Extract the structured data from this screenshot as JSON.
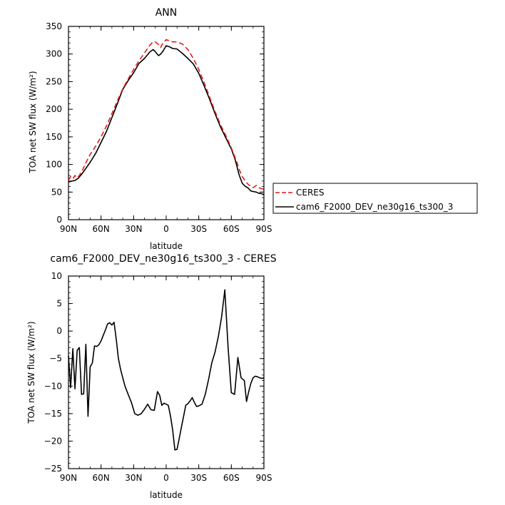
{
  "chart_data": [
    {
      "type": "line",
      "title": "ANN",
      "xlabel": "latitude",
      "ylabel": "TOA net SW flux (W/m²)",
      "xlim": [
        90,
        -90
      ],
      "ylim": [
        0,
        350
      ],
      "x_ticks": [
        {
          "value": 90,
          "label": "90N"
        },
        {
          "value": 60,
          "label": "60N"
        },
        {
          "value": 30,
          "label": "30N"
        },
        {
          "value": 0,
          "label": "0"
        },
        {
          "value": -30,
          "label": "30S"
        },
        {
          "value": -60,
          "label": "60S"
        },
        {
          "value": -90,
          "label": "90S"
        }
      ],
      "y_ticks": [
        0,
        50,
        100,
        150,
        200,
        250,
        300,
        350
      ],
      "legend": "right",
      "series": [
        {
          "name": "CERES",
          "color": "#e41a1c",
          "dash": "dashed",
          "x": [
            90,
            88,
            86,
            84,
            82,
            80,
            77,
            74,
            70,
            65,
            60,
            55,
            50,
            45,
            40,
            35,
            30,
            25,
            20,
            15,
            12,
            10,
            7,
            5,
            3,
            0,
            -3,
            -6,
            -10,
            -15,
            -20,
            -25,
            -30,
            -35,
            -40,
            -45,
            -50,
            -55,
            -60,
            -63,
            -65,
            -67,
            -70,
            -73,
            -75,
            -78,
            -80,
            -83,
            -85,
            -88,
            -90
          ],
          "values": [
            71,
            78,
            74,
            80,
            76,
            80,
            90,
            103,
            118,
            133,
            150,
            170,
            192,
            215,
            237,
            255,
            272,
            288,
            302,
            316,
            322,
            322,
            317,
            312,
            320,
            326,
            324,
            322,
            322,
            318,
            308,
            292,
            272,
            248,
            222,
            196,
            172,
            152,
            130,
            115,
            105,
            92,
            78,
            70,
            65,
            60,
            58,
            62,
            58,
            56,
            55
          ]
        },
        {
          "name": "cam6_F2000_DEV_ne30g16_ts300_3",
          "color": "#000000",
          "dash": "solid",
          "x": [
            90,
            87,
            84,
            81,
            78,
            75,
            70,
            65,
            60,
            55,
            50,
            45,
            40,
            35,
            30,
            25,
            20,
            15,
            12,
            10,
            7,
            5,
            3,
            0,
            -3,
            -6,
            -10,
            -15,
            -20,
            -25,
            -30,
            -35,
            -40,
            -45,
            -50,
            -55,
            -60,
            -63,
            -65,
            -67,
            -70,
            -73,
            -75,
            -78,
            -80,
            -83,
            -85,
            -88,
            -90
          ],
          "values": [
            68,
            70,
            71,
            75,
            82,
            90,
            104,
            120,
            140,
            160,
            185,
            210,
            236,
            252,
            266,
            283,
            292,
            304,
            308,
            304,
            297,
            300,
            305,
            315,
            313,
            310,
            309,
            301,
            292,
            282,
            265,
            242,
            218,
            192,
            168,
            148,
            128,
            112,
            98,
            82,
            66,
            60,
            58,
            52,
            51,
            50,
            48,
            47,
            45
          ]
        }
      ]
    },
    {
      "type": "line",
      "title": "cam6_F2000_DEV_ne30g16_ts300_3 - CERES",
      "xlabel": "latitude",
      "ylabel": "TOA net SW flux (W/m²)",
      "xlim": [
        90,
        -90
      ],
      "ylim": [
        -25,
        10
      ],
      "x_ticks": [
        {
          "value": 90,
          "label": "90N"
        },
        {
          "value": 60,
          "label": "60N"
        },
        {
          "value": 30,
          "label": "30N"
        },
        {
          "value": 0,
          "label": "0"
        },
        {
          "value": -30,
          "label": "30S"
        },
        {
          "value": -60,
          "label": "60S"
        },
        {
          "value": -90,
          "label": "90S"
        }
      ],
      "y_ticks": [
        -25,
        -20,
        -15,
        -10,
        -5,
        0,
        5,
        10
      ],
      "series": [
        {
          "color": "#000000",
          "dash": "solid",
          "x": [
            90,
            88,
            86,
            84,
            82,
            80,
            78,
            76,
            74,
            72,
            70,
            68,
            66,
            64,
            62,
            60,
            58,
            56,
            54,
            52,
            50,
            48,
            46,
            44,
            42,
            40,
            38,
            35,
            32,
            29,
            26,
            23,
            20,
            17,
            14,
            11,
            8,
            6,
            4,
            2,
            0,
            -2,
            -4,
            -6,
            -8,
            -10,
            -12,
            -14,
            -16,
            -18,
            -20,
            -22,
            -24,
            -26,
            -28,
            -30,
            -33,
            -36,
            -39,
            -42,
            -45,
            -48,
            -51,
            -54,
            -57,
            -60,
            -63,
            -66,
            -69,
            -72,
            -74,
            -76,
            -78,
            -80,
            -82,
            -84,
            -86,
            -88,
            -90
          ],
          "values": [
            -4.5,
            -10.3,
            -3.2,
            -10.5,
            -3.5,
            -3,
            -11.5,
            -11.4,
            -2.4,
            -15.5,
            -6.5,
            -5.8,
            -2.7,
            -2.8,
            -2.5,
            -1.8,
            -0.8,
            0.2,
            1.3,
            1.5,
            1.1,
            1.6,
            -1.5,
            -5,
            -7,
            -8.5,
            -10,
            -11.5,
            -13,
            -15,
            -15.3,
            -15,
            -14.2,
            -13.3,
            -14.3,
            -14.4,
            -11,
            -11.7,
            -13.5,
            -13.1,
            -13.3,
            -13.5,
            -15.5,
            -18,
            -21.6,
            -21.5,
            -19.5,
            -17.5,
            -15.5,
            -13.5,
            -13.2,
            -12.7,
            -12.1,
            -13,
            -13.7,
            -13.6,
            -13.3,
            -11.5,
            -8.8,
            -5.8,
            -3.8,
            -1,
            2.5,
            7.5,
            -3,
            -11.2,
            -11.5,
            -4.8,
            -8.5,
            -9,
            -12.8,
            -11,
            -9.5,
            -8.5,
            -8.2,
            -8.3,
            -8.5,
            -8.6,
            -8.5
          ]
        }
      ]
    }
  ]
}
